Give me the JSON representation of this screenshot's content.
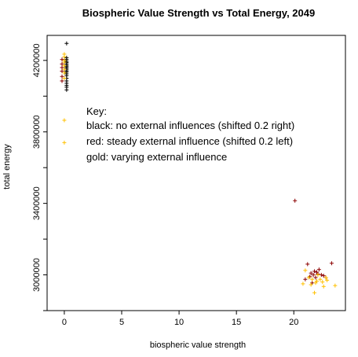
{
  "chart_data": {
    "type": "scatter",
    "title": "Biospheric Value Strength vs Total Energy, 2049",
    "xlabel": "biospheric value strength",
    "ylabel": "total energy",
    "xlim": [
      -1.5,
      24.5
    ],
    "ylim": [
      2800000,
      4340000
    ],
    "x_ticks": [
      0,
      5,
      10,
      15,
      20
    ],
    "y_ticks": [
      3000000,
      3400000,
      3800000,
      4200000
    ],
    "y_tick_labels": [
      "3000000",
      "3400000",
      "3800000",
      "4200000"
    ],
    "marker": "+",
    "grid": false,
    "legend_position": "center-left",
    "key": {
      "title": "Key:",
      "lines": [
        "black: no external influences (shifted 0.2 right)",
        "red: steady external influence (shifted 0.2 left)",
        "gold: varying external influence"
      ]
    },
    "colors": {
      "black": "#000000",
      "red": "#8b0000",
      "gold": "#ffc000"
    },
    "series": [
      {
        "color": "black",
        "points": [
          [
            0.2,
            4295000
          ],
          [
            0.2,
            4215000
          ],
          [
            0.2,
            4205000
          ],
          [
            0.2,
            4195000
          ],
          [
            0.2,
            4188000
          ],
          [
            0.2,
            4180000
          ],
          [
            0.2,
            4172000
          ],
          [
            0.2,
            4165000
          ],
          [
            0.2,
            4158000
          ],
          [
            0.2,
            4150000
          ],
          [
            0.2,
            4142000
          ],
          [
            0.2,
            4135000
          ],
          [
            0.2,
            4125000
          ],
          [
            0.2,
            4115000
          ],
          [
            0.2,
            4100000
          ],
          [
            0.2,
            4085000
          ],
          [
            0.2,
            4072000
          ],
          [
            0.2,
            4060000
          ],
          [
            0.2,
            4050000
          ],
          [
            0.2,
            4035000
          ]
        ]
      },
      {
        "color": "red",
        "points": [
          [
            -0.2,
            4205000
          ],
          [
            -0.2,
            4180000
          ],
          [
            -0.2,
            4160000
          ],
          [
            -0.2,
            4140000
          ],
          [
            -0.2,
            4110000
          ],
          [
            -0.2,
            4085000
          ],
          [
            20.1,
            3415000
          ],
          [
            21.2,
            3060000
          ],
          [
            21.5,
            3010000
          ],
          [
            21.8,
            3020000
          ],
          [
            22.0,
            3015000
          ],
          [
            22.2,
            3030000
          ],
          [
            21.4,
            2990000
          ],
          [
            21.9,
            2985000
          ],
          [
            22.4,
            3000000
          ],
          [
            22.6,
            2995000
          ],
          [
            22.1,
            3005000
          ],
          [
            21.7,
            3000000
          ],
          [
            23.3,
            3065000
          ],
          [
            22.0,
            2965000
          ],
          [
            21.0,
            2975000
          ],
          [
            22.8,
            2985000
          ],
          [
            21.6,
            2955000
          ]
        ]
      },
      {
        "color": "gold",
        "points": [
          [
            0.0,
            4235000
          ],
          [
            0.0,
            4220000
          ],
          [
            0.0,
            4200000
          ],
          [
            0.0,
            4190000
          ],
          [
            0.0,
            4170000
          ],
          [
            0.0,
            4150000
          ],
          [
            0.0,
            4130000
          ],
          [
            0.0,
            4100000
          ],
          [
            0.0,
            3865000
          ],
          [
            0.0,
            3740000
          ],
          [
            21.0,
            3025000
          ],
          [
            21.5,
            2945000
          ],
          [
            21.8,
            2900000
          ],
          [
            22.0,
            2965000
          ],
          [
            22.3,
            2975000
          ],
          [
            22.5,
            2960000
          ],
          [
            21.3,
            2985000
          ],
          [
            22.8,
            2985000
          ],
          [
            22.9,
            2970000
          ],
          [
            23.6,
            2940000
          ],
          [
            21.6,
            2975000
          ],
          [
            22.1,
            3000000
          ],
          [
            20.8,
            2950000
          ],
          [
            22.6,
            2935000
          ],
          [
            21.9,
            2955000
          ]
        ]
      }
    ]
  }
}
